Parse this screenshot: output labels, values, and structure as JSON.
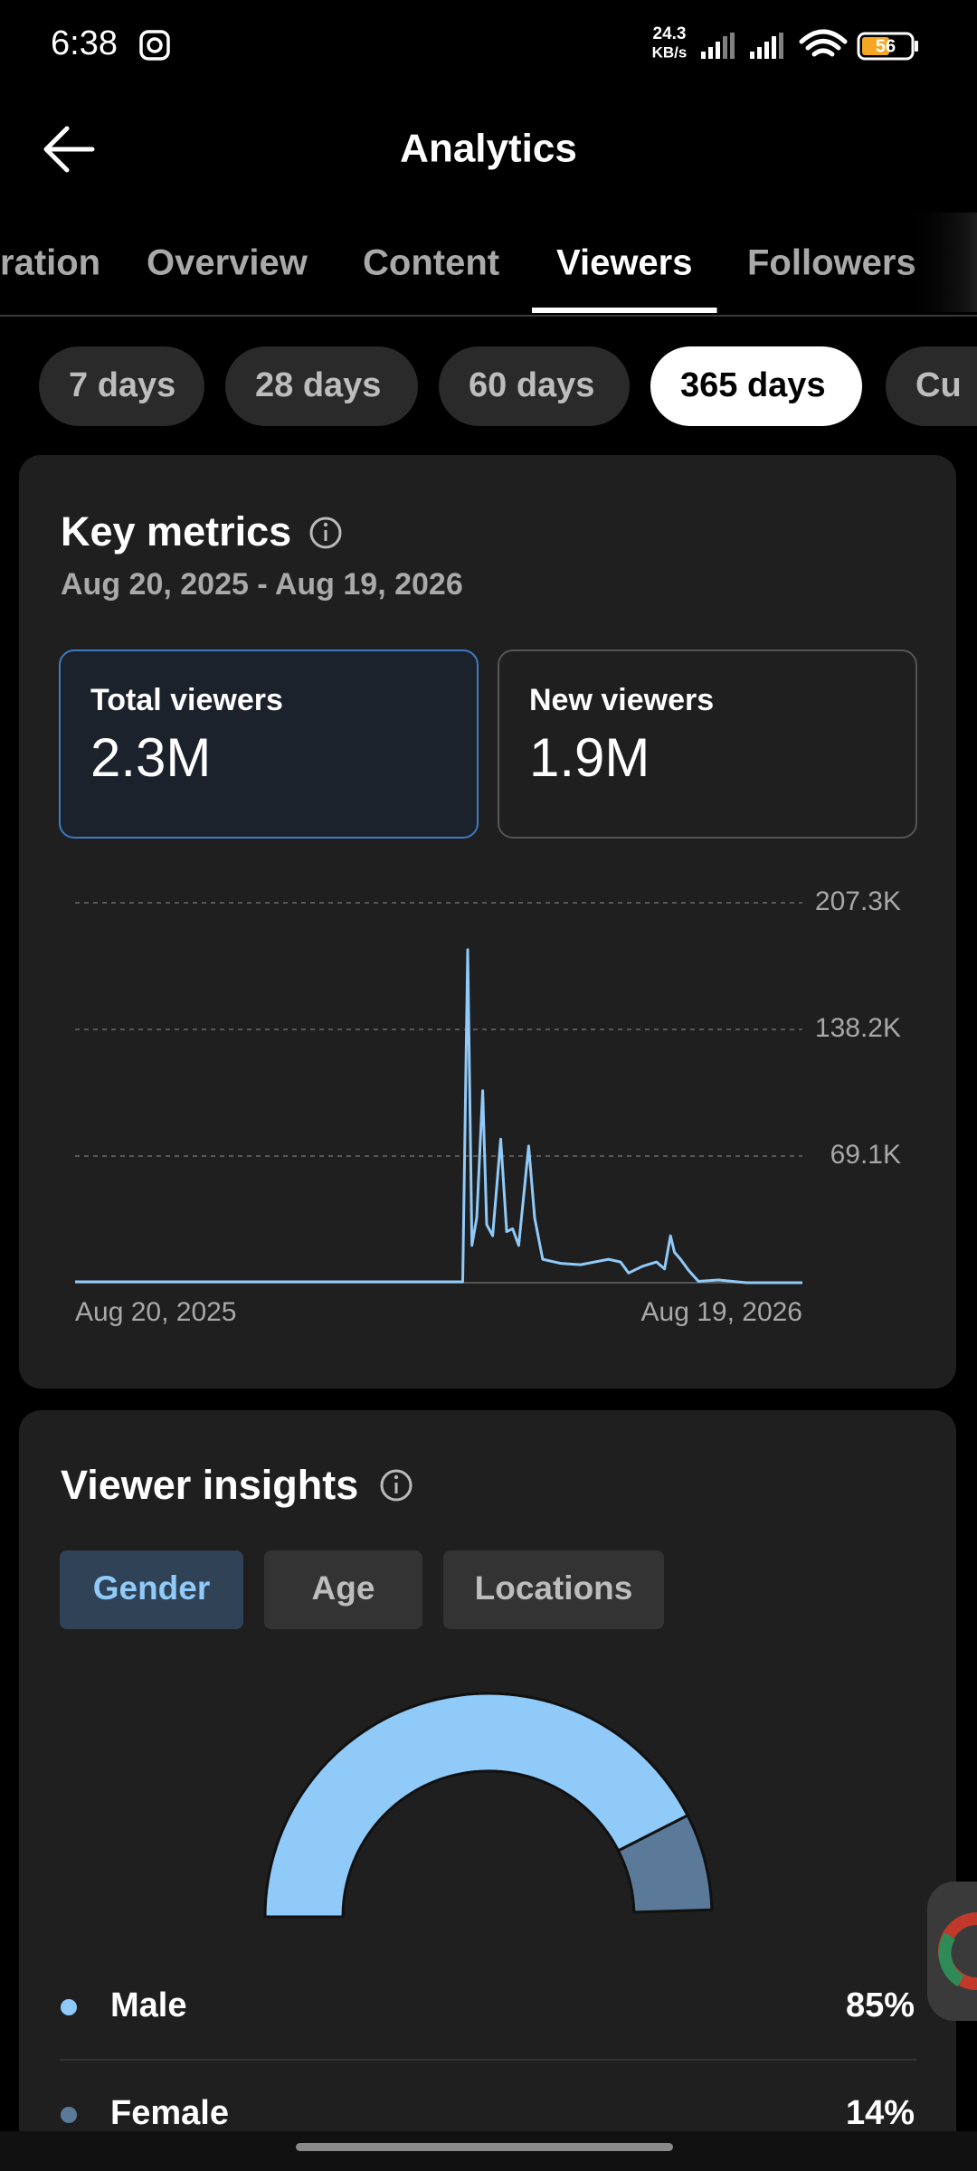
{
  "status_bar": {
    "time": "6:38",
    "net_speed": "24.3",
    "net_unit": "KB/s",
    "battery": "56"
  },
  "header": {
    "title": "Analytics"
  },
  "tabs": {
    "items": [
      "ration",
      "Overview",
      "Content",
      "Viewers",
      "Followers"
    ],
    "active": 3
  },
  "ranges": {
    "items": [
      "7 days",
      "28 days",
      "60 days",
      "365 days",
      "Cu"
    ],
    "active": 3
  },
  "key_metrics": {
    "title": "Key metrics",
    "date_range": "Aug 20, 2025 - Aug 19, 2026",
    "cards": [
      {
        "label": "Total viewers",
        "value": "2.3M"
      },
      {
        "label": "New viewers",
        "value": "1.9M"
      }
    ]
  },
  "viewer_insights": {
    "title": "Viewer insights",
    "tabs": [
      "Gender",
      "Age",
      "Locations"
    ],
    "active": 0
  },
  "chart_data": [
    {
      "type": "line",
      "x": [
        0,
        100,
        194,
        196.5,
        198.6,
        201,
        204,
        206,
        209,
        213,
        216,
        219,
        222,
        227,
        230,
        234,
        243,
        253,
        267,
        273,
        277,
        284,
        291,
        295,
        298,
        300,
        303,
        307,
        312,
        322,
        336,
        364
      ],
      "values": [
        500,
        500,
        500,
        181700,
        20350,
        35400,
        104800,
        31700,
        25600,
        78400,
        27900,
        29400,
        20350,
        74600,
        35400,
        12800,
        10550,
        9800,
        12800,
        11300,
        5300,
        9000,
        11300,
        7500,
        25600,
        16600,
        12800,
        6800,
        750,
        1500,
        0,
        0
      ],
      "color": "#90caf9",
      "xlim": [
        0,
        364
      ],
      "xticks": [
        {
          "value": 0,
          "label": "Aug 20, 2025"
        },
        {
          "value": 364,
          "label": "Aug 19, 2026"
        }
      ],
      "ylim": [
        0,
        207300
      ],
      "yticks": [
        {
          "value": 69100,
          "label": "69.1K"
        },
        {
          "value": 138200,
          "label": "138.2K"
        },
        {
          "value": 207300,
          "label": "207.3K"
        }
      ],
      "grid": true
    },
    {
      "type": "pie",
      "categories": [
        "Male",
        "Female"
      ],
      "values": [
        85,
        14
      ],
      "value_labels": [
        "85%",
        "14%"
      ],
      "colors": [
        "#90caf9",
        "#5b7a99"
      ]
    }
  ]
}
